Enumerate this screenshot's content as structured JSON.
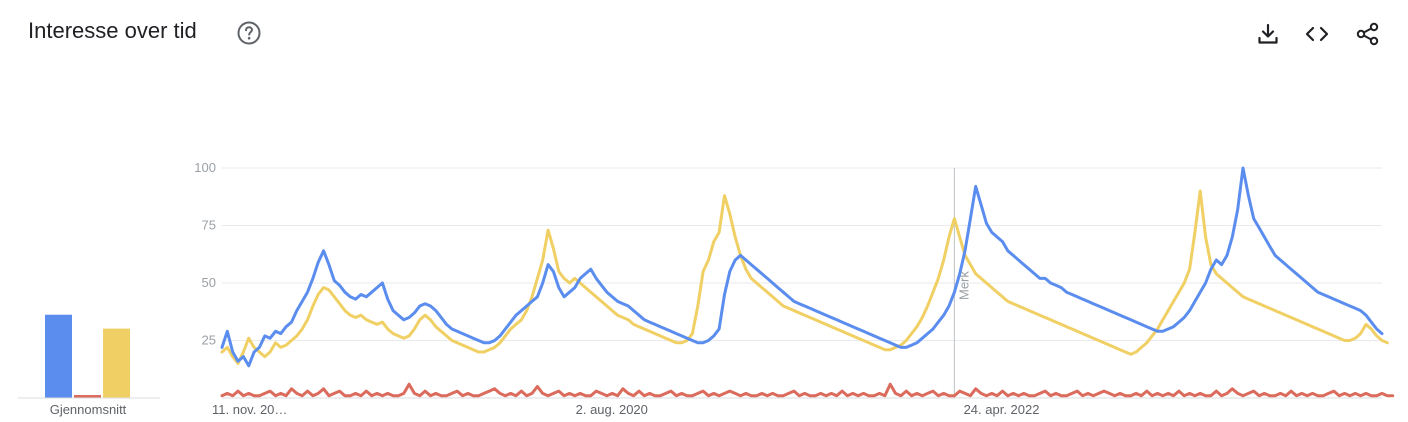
{
  "header": {
    "title": "Interesse over tid",
    "help_icon": "help-circle-icon",
    "actions": [
      {
        "icon": "download-icon"
      },
      {
        "icon": "embed-code-icon"
      },
      {
        "icon": "share-icon"
      }
    ]
  },
  "average": {
    "label": "Gjennomsnitt",
    "values": [
      42,
      1.5,
      35
    ],
    "colors": [
      "#5b8def",
      "#db6b5c",
      "#f0d064"
    ]
  },
  "chart_data": {
    "type": "line",
    "y_ticks": [
      25,
      50,
      75,
      100
    ],
    "ylim": [
      0,
      100
    ],
    "x_tick_labels": [
      "11. nov. 20…",
      "2. aug. 2020",
      "24. apr. 2022"
    ],
    "annotation": "Merk",
    "grid": true,
    "series": [
      {
        "color": "#5b8def",
        "values": [
          22,
          29,
          20,
          16,
          18,
          14,
          20,
          22,
          27,
          26,
          29,
          28,
          31,
          33,
          38,
          42,
          46,
          52,
          59,
          64,
          58,
          51,
          49,
          46,
          44,
          43,
          45,
          44,
          46,
          48,
          50,
          43,
          38,
          36,
          34,
          35,
          37,
          40,
          41,
          40,
          38,
          35,
          32,
          30,
          29,
          28,
          27,
          26,
          25,
          24,
          24,
          25,
          27,
          30,
          33,
          36,
          38,
          40,
          42,
          44,
          50,
          58,
          55,
          48,
          44,
          46,
          48,
          52,
          54,
          56,
          52,
          49,
          46,
          44,
          42,
          41,
          40,
          38,
          36,
          34,
          33,
          32,
          31,
          30,
          29,
          28,
          27,
          26,
          25,
          24,
          24,
          25,
          27,
          30,
          45,
          55,
          60,
          62,
          60,
          58,
          56,
          54,
          52,
          50,
          48,
          46,
          44,
          42,
          41,
          40,
          39,
          38,
          37,
          36,
          35,
          34,
          33,
          32,
          31,
          30,
          29,
          28,
          27,
          26,
          25,
          24,
          23,
          22,
          22,
          23,
          24,
          26,
          28,
          30,
          33,
          36,
          40,
          46,
          54,
          64,
          78,
          92,
          84,
          76,
          72,
          70,
          68,
          64,
          62,
          60,
          58,
          56,
          54,
          52,
          52,
          50,
          49,
          48,
          46,
          45,
          44,
          43,
          42,
          41,
          40,
          39,
          38,
          37,
          36,
          35,
          34,
          33,
          32,
          31,
          30,
          29,
          29,
          30,
          31,
          33,
          35,
          38,
          42,
          46,
          50,
          56,
          60,
          58,
          62,
          70,
          82,
          100,
          88,
          78,
          74,
          70,
          66,
          62,
          60,
          58,
          56,
          54,
          52,
          50,
          48,
          46,
          45,
          44,
          43,
          42,
          41,
          40,
          39,
          38,
          36,
          33,
          30,
          28
        ]
      },
      {
        "color": "#db6b5c",
        "values": [
          1,
          2,
          1,
          3,
          1,
          2,
          1,
          1,
          2,
          3,
          1,
          2,
          1,
          4,
          2,
          1,
          3,
          1,
          2,
          4,
          1,
          2,
          3,
          1,
          1,
          2,
          1,
          3,
          1,
          2,
          1,
          2,
          1,
          1,
          2,
          6,
          2,
          1,
          3,
          1,
          2,
          1,
          1,
          2,
          3,
          1,
          2,
          1,
          1,
          2,
          3,
          4,
          2,
          1,
          2,
          1,
          3,
          1,
          2,
          5,
          2,
          1,
          2,
          3,
          1,
          2,
          1,
          2,
          1,
          1,
          3,
          2,
          1,
          2,
          1,
          4,
          2,
          1,
          3,
          1,
          2,
          1,
          1,
          2,
          3,
          1,
          2,
          1,
          1,
          2,
          3,
          1,
          2,
          1,
          2,
          3,
          2,
          1,
          2,
          1,
          1,
          2,
          1,
          2,
          1,
          1,
          2,
          3,
          1,
          2,
          1,
          1,
          2,
          1,
          2,
          1,
          3,
          1,
          2,
          1,
          2,
          1,
          1,
          2,
          1,
          6,
          2,
          1,
          3,
          1,
          2,
          1,
          2,
          3,
          1,
          2,
          1,
          1,
          3,
          2,
          1,
          4,
          2,
          1,
          2,
          1,
          3,
          1,
          2,
          1,
          2,
          1,
          1,
          2,
          3,
          1,
          2,
          1,
          1,
          2,
          3,
          1,
          2,
          1,
          2,
          3,
          2,
          1,
          2,
          1,
          1,
          2,
          1,
          3,
          1,
          2,
          1,
          2,
          1,
          3,
          1,
          2,
          1,
          2,
          1,
          1,
          3,
          1,
          2,
          4,
          2,
          1,
          2,
          3,
          1,
          2,
          1,
          1,
          2,
          1,
          3,
          1,
          2,
          1,
          2,
          1,
          1,
          2,
          3,
          1,
          2,
          1,
          2,
          1,
          2,
          1,
          1,
          2,
          1,
          1
        ]
      },
      {
        "color": "#f0d064",
        "values": [
          20,
          22,
          18,
          15,
          20,
          26,
          22,
          20,
          18,
          20,
          24,
          22,
          23,
          25,
          27,
          30,
          34,
          40,
          45,
          48,
          47,
          44,
          41,
          38,
          36,
          35,
          36,
          34,
          33,
          32,
          33,
          30,
          28,
          27,
          26,
          27,
          30,
          34,
          36,
          34,
          31,
          29,
          27,
          25,
          24,
          23,
          22,
          21,
          20,
          20,
          21,
          22,
          24,
          27,
          30,
          32,
          34,
          38,
          44,
          52,
          60,
          73,
          65,
          55,
          52,
          50,
          52,
          50,
          48,
          46,
          44,
          42,
          40,
          38,
          36,
          35,
          34,
          32,
          31,
          30,
          29,
          28,
          27,
          26,
          25,
          24,
          24,
          25,
          28,
          40,
          55,
          60,
          68,
          72,
          88,
          80,
          70,
          62,
          56,
          52,
          50,
          48,
          46,
          44,
          42,
          40,
          39,
          38,
          37,
          36,
          35,
          34,
          33,
          32,
          31,
          30,
          29,
          28,
          27,
          26,
          25,
          24,
          23,
          22,
          21,
          21,
          22,
          23,
          25,
          28,
          31,
          35,
          40,
          46,
          52,
          60,
          70,
          78,
          70,
          62,
          58,
          54,
          52,
          50,
          48,
          46,
          44,
          42,
          41,
          40,
          39,
          38,
          37,
          36,
          35,
          34,
          33,
          32,
          31,
          30,
          29,
          28,
          27,
          26,
          25,
          24,
          23,
          22,
          21,
          20,
          19,
          20,
          22,
          24,
          27,
          30,
          34,
          38,
          42,
          46,
          50,
          56,
          72,
          90,
          70,
          58,
          54,
          52,
          50,
          48,
          46,
          44,
          43,
          42,
          41,
          40,
          39,
          38,
          37,
          36,
          35,
          34,
          33,
          32,
          31,
          30,
          29,
          28,
          27,
          26,
          25,
          25,
          26,
          28,
          32,
          30,
          27,
          25,
          24
        ]
      }
    ]
  }
}
